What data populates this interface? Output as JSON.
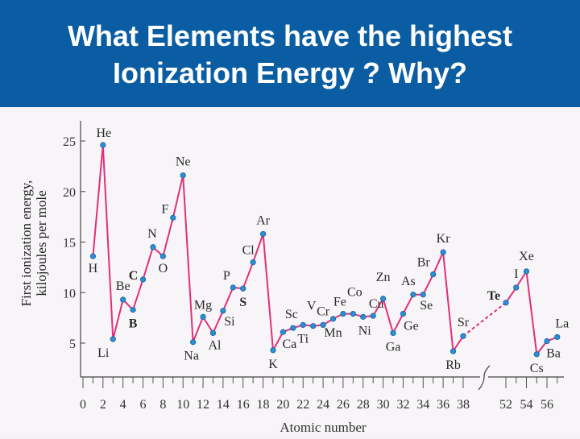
{
  "title": {
    "line1": "What Elements have the highest",
    "line2": "Ionization Energy ?  Why?"
  },
  "chart_data": {
    "type": "line",
    "ylabel_line1": "First ionization energy,",
    "ylabel_line2": "kilojoules per mole",
    "xlabel": "Atomic number",
    "ylim": [
      2,
      26
    ],
    "y_ticks": [
      "5",
      "10",
      "15",
      "20",
      "25"
    ],
    "x_ticks": [
      "0",
      "2",
      "4",
      "6",
      "8",
      "10",
      "12",
      "14",
      "16",
      "18",
      "20",
      "22",
      "24",
      "26",
      "28",
      "30",
      "32",
      "34",
      "36",
      "38",
      "52",
      "54",
      "56"
    ],
    "axis_break_between": [
      38,
      52
    ],
    "line_color": "#e0307a",
    "marker_color": "#2a8fd6",
    "series": [
      {
        "points": [
          {
            "x": 1,
            "y": 13.6,
            "label": "H"
          },
          {
            "x": 2,
            "y": 24.6,
            "label": "He"
          },
          {
            "x": 3,
            "y": 5.4,
            "label": "Li"
          },
          {
            "x": 4,
            "y": 9.3,
            "label": "Be"
          },
          {
            "x": 5,
            "y": 8.3,
            "label": "B"
          },
          {
            "x": 6,
            "y": 11.3,
            "label": "C"
          },
          {
            "x": 7,
            "y": 14.5,
            "label": "N"
          },
          {
            "x": 8,
            "y": 13.6,
            "label": "O"
          },
          {
            "x": 9,
            "y": 17.4,
            "label": "F"
          },
          {
            "x": 10,
            "y": 21.6,
            "label": "Ne"
          },
          {
            "x": 11,
            "y": 5.1,
            "label": "Na"
          },
          {
            "x": 12,
            "y": 7.6,
            "label": "Mg"
          },
          {
            "x": 13,
            "y": 6.0,
            "label": "Al"
          },
          {
            "x": 14,
            "y": 8.2,
            "label": "Si"
          },
          {
            "x": 15,
            "y": 10.5,
            "label": "P"
          },
          {
            "x": 16,
            "y": 10.4,
            "label": "S"
          },
          {
            "x": 17,
            "y": 13.0,
            "label": "Cl"
          },
          {
            "x": 18,
            "y": 15.8,
            "label": "Ar"
          },
          {
            "x": 19,
            "y": 4.3,
            "label": "K"
          },
          {
            "x": 20,
            "y": 6.1,
            "label": "Ca"
          },
          {
            "x": 21,
            "y": 6.5,
            "label": "Sc"
          },
          {
            "x": 22,
            "y": 6.8,
            "label": "Ti"
          },
          {
            "x": 23,
            "y": 6.7,
            "label": "V"
          },
          {
            "x": 24,
            "y": 6.8,
            "label": "Cr"
          },
          {
            "x": 25,
            "y": 7.4,
            "label": "Mn"
          },
          {
            "x": 26,
            "y": 7.9,
            "label": "Fe"
          },
          {
            "x": 27,
            "y": 7.9,
            "label": "Co"
          },
          {
            "x": 28,
            "y": 7.6,
            "label": "Ni"
          },
          {
            "x": 29,
            "y": 7.7,
            "label": "Cu"
          },
          {
            "x": 30,
            "y": 9.4,
            "label": "Zn"
          },
          {
            "x": 31,
            "y": 6.0,
            "label": "Ga"
          },
          {
            "x": 32,
            "y": 7.9,
            "label": "Ge"
          },
          {
            "x": 33,
            "y": 9.8,
            "label": "As"
          },
          {
            "x": 34,
            "y": 9.8,
            "label": "Se"
          },
          {
            "x": 35,
            "y": 11.8,
            "label": "Br"
          },
          {
            "x": 36,
            "y": 14.0,
            "label": "Kr"
          },
          {
            "x": 37,
            "y": 4.2,
            "label": "Rb"
          },
          {
            "x": 38,
            "y": 5.7,
            "label": "Sr"
          },
          {
            "x": 52,
            "y": 9.0,
            "label": "Te"
          },
          {
            "x": 53,
            "y": 10.5,
            "label": "I"
          },
          {
            "x": 54,
            "y": 12.1,
            "label": "Xe"
          },
          {
            "x": 55,
            "y": 3.9,
            "label": "Cs"
          },
          {
            "x": 56,
            "y": 5.2,
            "label": "Ba"
          },
          {
            "x": 57,
            "y": 5.6,
            "label": "La"
          }
        ]
      }
    ]
  }
}
